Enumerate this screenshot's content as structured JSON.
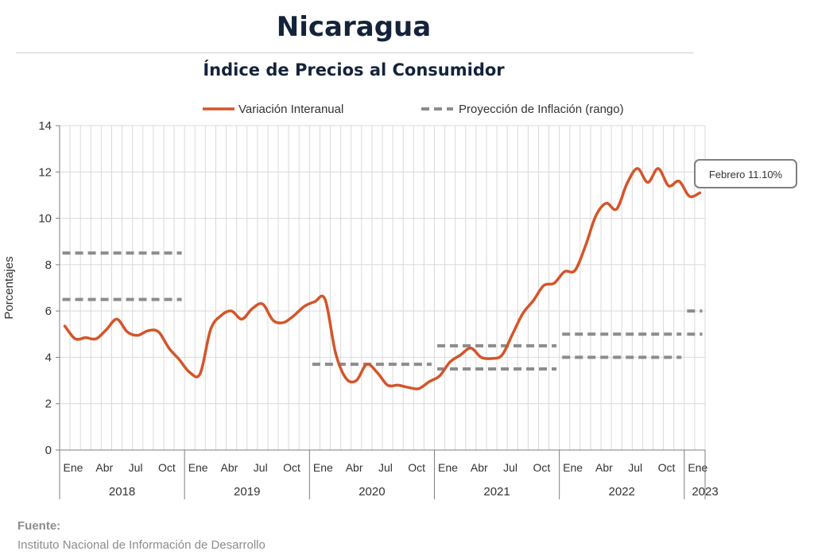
{
  "title": "Nicaragua",
  "subtitle": "Índice de Precios al Consumidor",
  "source": {
    "label": "Fuente:",
    "text": "Instituto Nacional de Información de  Desarrollo"
  },
  "colors": {
    "series": "#d4552a",
    "projection": "#8c8c8c",
    "grid": "#d9d9d9",
    "text": "#333333"
  },
  "chart_data": {
    "type": "line",
    "ylabel": "Porcentajes",
    "ylim": [
      0,
      14
    ],
    "yticks": [
      0,
      2,
      4,
      6,
      8,
      10,
      12,
      14
    ],
    "grid": true,
    "legend_position": "top",
    "x_start": "2018-01",
    "x_end": "2023-02",
    "month_tick_labels": [
      "Ene",
      "Abr",
      "Jul",
      "Oct"
    ],
    "year_labels": [
      "2018",
      "2019",
      "2020",
      "2021",
      "2022",
      "2023"
    ],
    "last_year_tick_labels": [
      "Ene"
    ],
    "series": [
      {
        "name": "Variación Interanual",
        "style": "solid",
        "values": [
          5.35,
          4.8,
          4.85,
          4.8,
          5.2,
          5.65,
          5.1,
          4.95,
          5.15,
          5.1,
          4.4,
          3.9,
          3.35,
          3.3,
          5.2,
          5.8,
          6.0,
          5.65,
          6.1,
          6.3,
          5.6,
          5.5,
          5.8,
          6.2,
          6.4,
          6.5,
          4.2,
          3.1,
          3.0,
          3.7,
          3.35,
          2.8,
          2.8,
          2.7,
          2.65,
          2.95,
          3.2,
          3.8,
          4.1,
          4.4,
          4.0,
          3.95,
          4.1,
          5.0,
          5.9,
          6.45,
          7.1,
          7.2,
          7.7,
          7.75,
          8.8,
          10.1,
          10.65,
          10.4,
          11.5,
          12.15,
          11.55,
          12.15,
          11.4,
          11.6,
          10.95,
          11.1
        ]
      },
      {
        "name": "Proyección de Inflación (rango)",
        "style": "dashed",
        "ranges": [
          {
            "from": "2018-01",
            "to": "2018-12",
            "values": [
              6.5,
              8.5
            ]
          },
          {
            "from": "2020-01",
            "to": "2020-12",
            "values": [
              3.7
            ]
          },
          {
            "from": "2021-01",
            "to": "2021-12",
            "values": [
              3.5,
              4.5
            ]
          },
          {
            "from": "2022-01",
            "to": "2022-12",
            "values": [
              4.0,
              5.0
            ]
          },
          {
            "from": "2023-01",
            "to": "2023-02",
            "values": [
              5.0,
              6.0
            ]
          }
        ]
      }
    ],
    "annotation": {
      "text": "Febrero 11.10%",
      "x": "2023-02",
      "y": 11.1
    }
  }
}
